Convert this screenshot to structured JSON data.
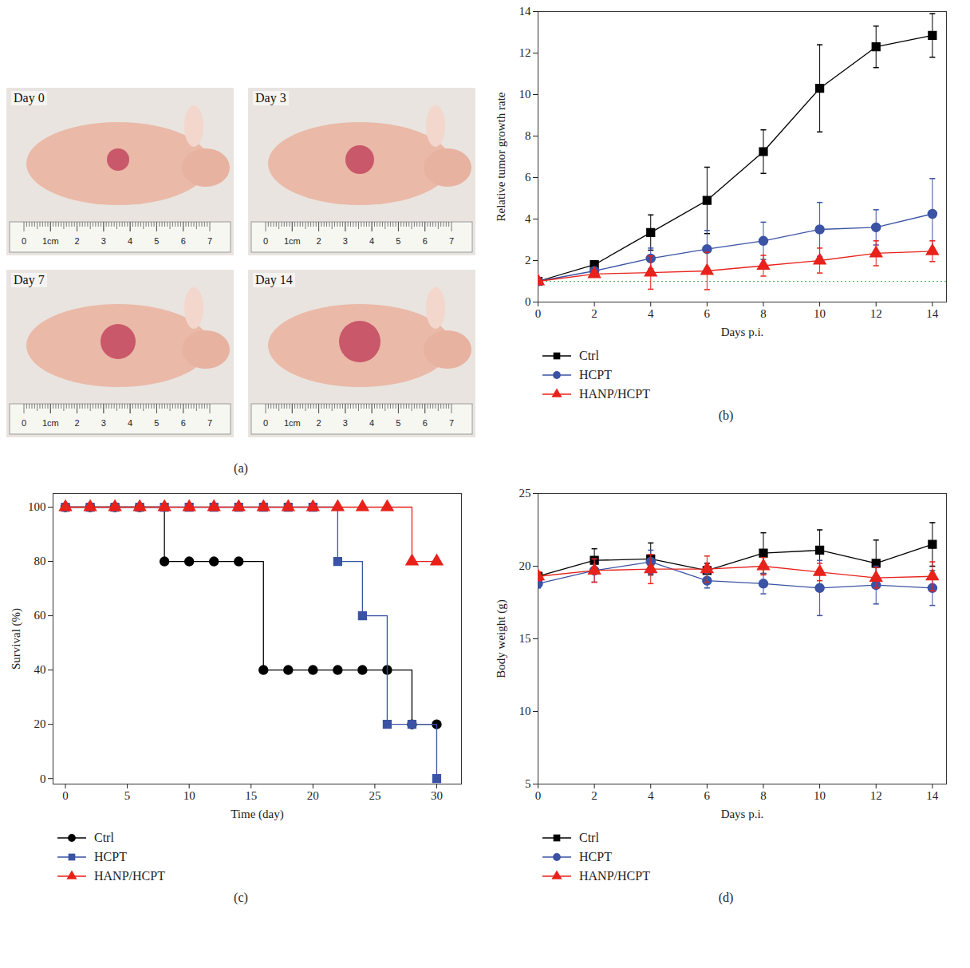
{
  "chart_data": [
    {
      "type": "image",
      "caption": "(a)",
      "images": [
        {
          "label": "Day 0"
        },
        {
          "label": "Day 3"
        },
        {
          "label": "Day 7"
        },
        {
          "label": "Day 14"
        }
      ],
      "ruler_labels": [
        "0",
        "1cm",
        "2",
        "3",
        "4",
        "5",
        "6",
        "7"
      ]
    },
    {
      "type": "line",
      "caption": "(b)",
      "x_label": "Days p.i.",
      "y_label": "Relative tumor growth rate",
      "x": [
        0,
        2,
        4,
        6,
        8,
        10,
        12,
        14
      ],
      "xlim": [
        0,
        14.5
      ],
      "xticks": [
        0,
        2,
        4,
        6,
        8,
        10,
        12,
        14
      ],
      "ylim": [
        0,
        14
      ],
      "yticks": [
        0,
        2,
        4,
        6,
        8,
        10,
        12,
        14
      ],
      "reference": {
        "y": 1,
        "color": "#4caf50",
        "line_style": "dotted"
      },
      "series": [
        {
          "name": "Ctrl",
          "color": "#000000",
          "marker": "square",
          "values": [
            1,
            1.8,
            3.35,
            4.9,
            7.25,
            10.3,
            12.3,
            12.85
          ],
          "errors": [
            0.05,
            0.1,
            0.85,
            1.6,
            1.05,
            2.1,
            1.0,
            1.05
          ]
        },
        {
          "name": "HCPT",
          "color": "#3a53a4",
          "marker": "circle",
          "values": [
            1,
            1.5,
            2.1,
            2.55,
            2.95,
            3.5,
            3.6,
            4.25
          ],
          "errors": [
            0.05,
            0.1,
            0.5,
            0.9,
            0.9,
            1.3,
            0.85,
            1.7
          ]
        },
        {
          "name": "HANP/HCPT",
          "color": "#e8221b",
          "marker": "triangle",
          "values": [
            1,
            1.35,
            1.42,
            1.5,
            1.75,
            2.0,
            2.35,
            2.45
          ],
          "errors": [
            0.05,
            0.1,
            0.8,
            0.9,
            0.5,
            0.6,
            0.6,
            0.5
          ]
        }
      ]
    },
    {
      "type": "step",
      "caption": "(c)",
      "x_label": "Time (day)",
      "y_label": "Survival (%)",
      "x": [
        0,
        2,
        4,
        6,
        8,
        10,
        12,
        14,
        16,
        18,
        20,
        22,
        24,
        26,
        28,
        30
      ],
      "xlim": [
        -1,
        32
      ],
      "xticks": [
        0,
        5,
        10,
        15,
        20,
        25,
        30
      ],
      "ylim": [
        -2,
        105
      ],
      "yticks": [
        0,
        20,
        40,
        60,
        80,
        100
      ],
      "series": [
        {
          "name": "Ctrl",
          "color": "#000000",
          "marker": "circle",
          "values": [
            100,
            100,
            100,
            100,
            80,
            80,
            80,
            80,
            40,
            40,
            40,
            40,
            40,
            40,
            20,
            20
          ]
        },
        {
          "name": "HCPT",
          "color": "#3a53a4",
          "marker": "square",
          "values": [
            100,
            100,
            100,
            100,
            100,
            100,
            100,
            100,
            100,
            100,
            100,
            80,
            60,
            20,
            20,
            0
          ]
        },
        {
          "name": "HANP/HCPT",
          "color": "#e8221b",
          "marker": "triangle",
          "values": [
            100,
            100,
            100,
            100,
            100,
            100,
            100,
            100,
            100,
            100,
            100,
            100,
            100,
            100,
            80,
            80
          ]
        }
      ]
    },
    {
      "type": "line",
      "caption": "(d)",
      "x_label": "Days p.i.",
      "y_label": "Body weight (g)",
      "x": [
        0,
        2,
        4,
        6,
        8,
        10,
        12,
        14
      ],
      "xlim": [
        0,
        14.5
      ],
      "xticks": [
        0,
        2,
        4,
        6,
        8,
        10,
        12,
        14
      ],
      "ylim": [
        5,
        25
      ],
      "yticks": [
        5,
        10,
        15,
        20,
        25
      ],
      "series": [
        {
          "name": "Ctrl",
          "color": "#000000",
          "marker": "square",
          "values": [
            19.3,
            20.4,
            20.5,
            19.7,
            20.9,
            21.1,
            20.2,
            21.5
          ],
          "errors": [
            0.3,
            0.8,
            1.1,
            0.5,
            1.4,
            1.4,
            1.6,
            1.5
          ]
        },
        {
          "name": "HCPT",
          "color": "#3a53a4",
          "marker": "circle",
          "values": [
            18.8,
            19.7,
            20.3,
            19.0,
            18.8,
            18.5,
            18.7,
            18.5
          ],
          "errors": [
            0.3,
            0.8,
            0.8,
            0.5,
            0.7,
            1.9,
            1.3,
            1.2
          ]
        },
        {
          "name": "HANP/HCPT",
          "color": "#e8221b",
          "marker": "triangle",
          "values": [
            19.3,
            19.7,
            19.8,
            19.8,
            20.0,
            19.6,
            19.2,
            19.3
          ],
          "errors": [
            0.3,
            0.8,
            1.0,
            0.9,
            0.6,
            0.6,
            0.7,
            1.0
          ]
        }
      ]
    }
  ]
}
